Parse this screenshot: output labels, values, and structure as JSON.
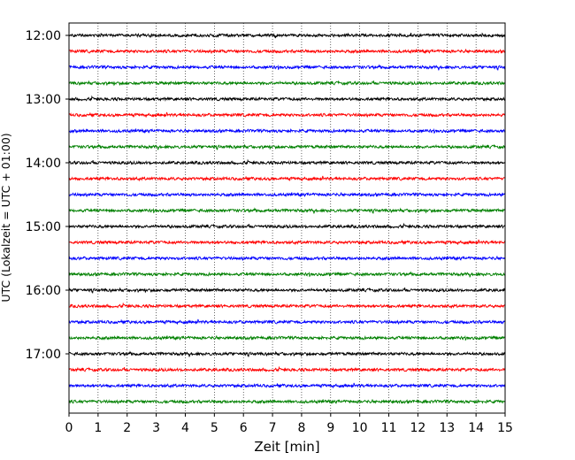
{
  "chart_data": {
    "type": "line",
    "title": "",
    "xlabel": "Zeit  [min]",
    "ylabel": "UTC (Lokalzeit = UTC + 01:00)",
    "xlim": [
      0,
      15
    ],
    "xticks": [
      0,
      1,
      2,
      3,
      4,
      5,
      6,
      7,
      8,
      9,
      10,
      11,
      12,
      13,
      14,
      15
    ],
    "y_tick_labels": [
      "12:00",
      "13:00",
      "14:00",
      "15:00",
      "16:00",
      "17:00"
    ],
    "grid": "vertical dotted lines at each minute",
    "trace_minutes": 15,
    "colors": [
      "#000000",
      "#ff0000",
      "#0000ff",
      "#008000"
    ],
    "rows": [
      {
        "start": "12:00",
        "color": "#000000"
      },
      {
        "start": "12:15",
        "color": "#ff0000"
      },
      {
        "start": "12:30",
        "color": "#0000ff"
      },
      {
        "start": "12:45",
        "color": "#008000"
      },
      {
        "start": "13:00",
        "color": "#000000"
      },
      {
        "start": "13:15",
        "color": "#ff0000"
      },
      {
        "start": "13:30",
        "color": "#0000ff"
      },
      {
        "start": "13:45",
        "color": "#008000"
      },
      {
        "start": "14:00",
        "color": "#000000"
      },
      {
        "start": "14:15",
        "color": "#ff0000"
      },
      {
        "start": "14:30",
        "color": "#0000ff"
      },
      {
        "start": "14:45",
        "color": "#008000"
      },
      {
        "start": "15:00",
        "color": "#000000"
      },
      {
        "start": "15:15",
        "color": "#ff0000"
      },
      {
        "start": "15:30",
        "color": "#0000ff"
      },
      {
        "start": "15:45",
        "color": "#008000"
      },
      {
        "start": "16:00",
        "color": "#000000"
      },
      {
        "start": "16:15",
        "color": "#ff0000"
      },
      {
        "start": "16:30",
        "color": "#0000ff"
      },
      {
        "start": "16:45",
        "color": "#008000"
      },
      {
        "start": "17:00",
        "color": "#000000"
      },
      {
        "start": "17:15",
        "color": "#ff0000"
      },
      {
        "start": "17:30",
        "color": "#0000ff"
      },
      {
        "start": "17:45",
        "color": "#008000"
      }
    ]
  }
}
